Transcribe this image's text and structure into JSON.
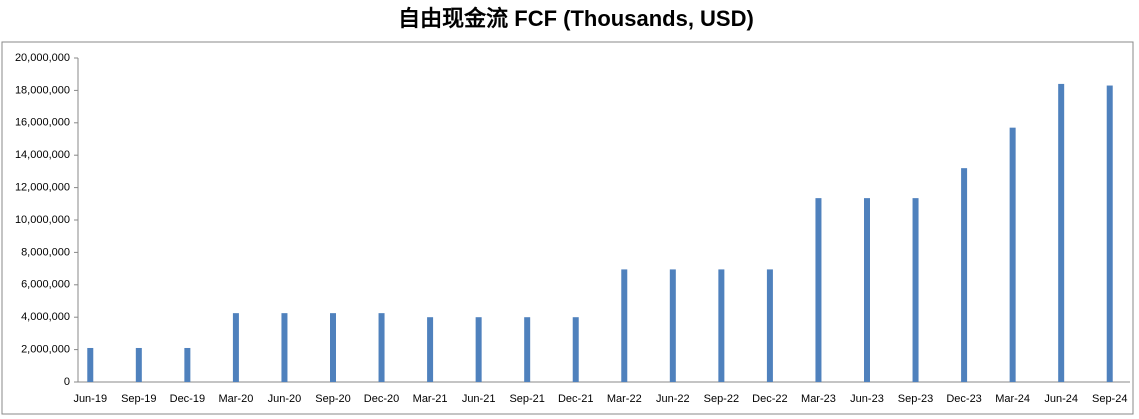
{
  "chart_data": {
    "type": "bar",
    "title": "自由现金流 FCF (Thousands, USD)",
    "categories": [
      "Jun-19",
      "Sep-19",
      "Dec-19",
      "Mar-20",
      "Jun-20",
      "Sep-20",
      "Dec-20",
      "Mar-21",
      "Jun-21",
      "Sep-21",
      "Dec-21",
      "Mar-22",
      "Jun-22",
      "Sep-22",
      "Dec-22",
      "Mar-23",
      "Jun-23",
      "Sep-23",
      "Dec-23",
      "Mar-24",
      "Jun-24",
      "Sep-24"
    ],
    "values": [
      2100000,
      2100000,
      2100000,
      4250000,
      4250000,
      4250000,
      4250000,
      4000000,
      4000000,
      4000000,
      4000000,
      6950000,
      6950000,
      6950000,
      6950000,
      11350000,
      11350000,
      11350000,
      13200000,
      15700000,
      18400000,
      18300000
    ],
    "color": "#4f81bd",
    "ylim": [
      0,
      20000000
    ],
    "yticks": [
      0,
      {
        "value": 2000000,
        "label": "2,000,000"
      },
      {
        "value": 4000000,
        "label": "4,000,000"
      },
      {
        "value": 6000000,
        "label": "6,000,000"
      },
      {
        "value": 8000000,
        "label": "8,000,000"
      },
      {
        "value": 10000000,
        "label": "10,000,000"
      },
      {
        "value": 12000000,
        "label": "12,000,000"
      },
      {
        "value": 14000000,
        "label": "14,000,000"
      },
      {
        "value": 16000000,
        "label": "16,000,000"
      },
      {
        "value": 18000000,
        "label": "18,000,000"
      },
      {
        "value": 20000000,
        "label": "20,000,000"
      }
    ],
    "grid": false
  }
}
